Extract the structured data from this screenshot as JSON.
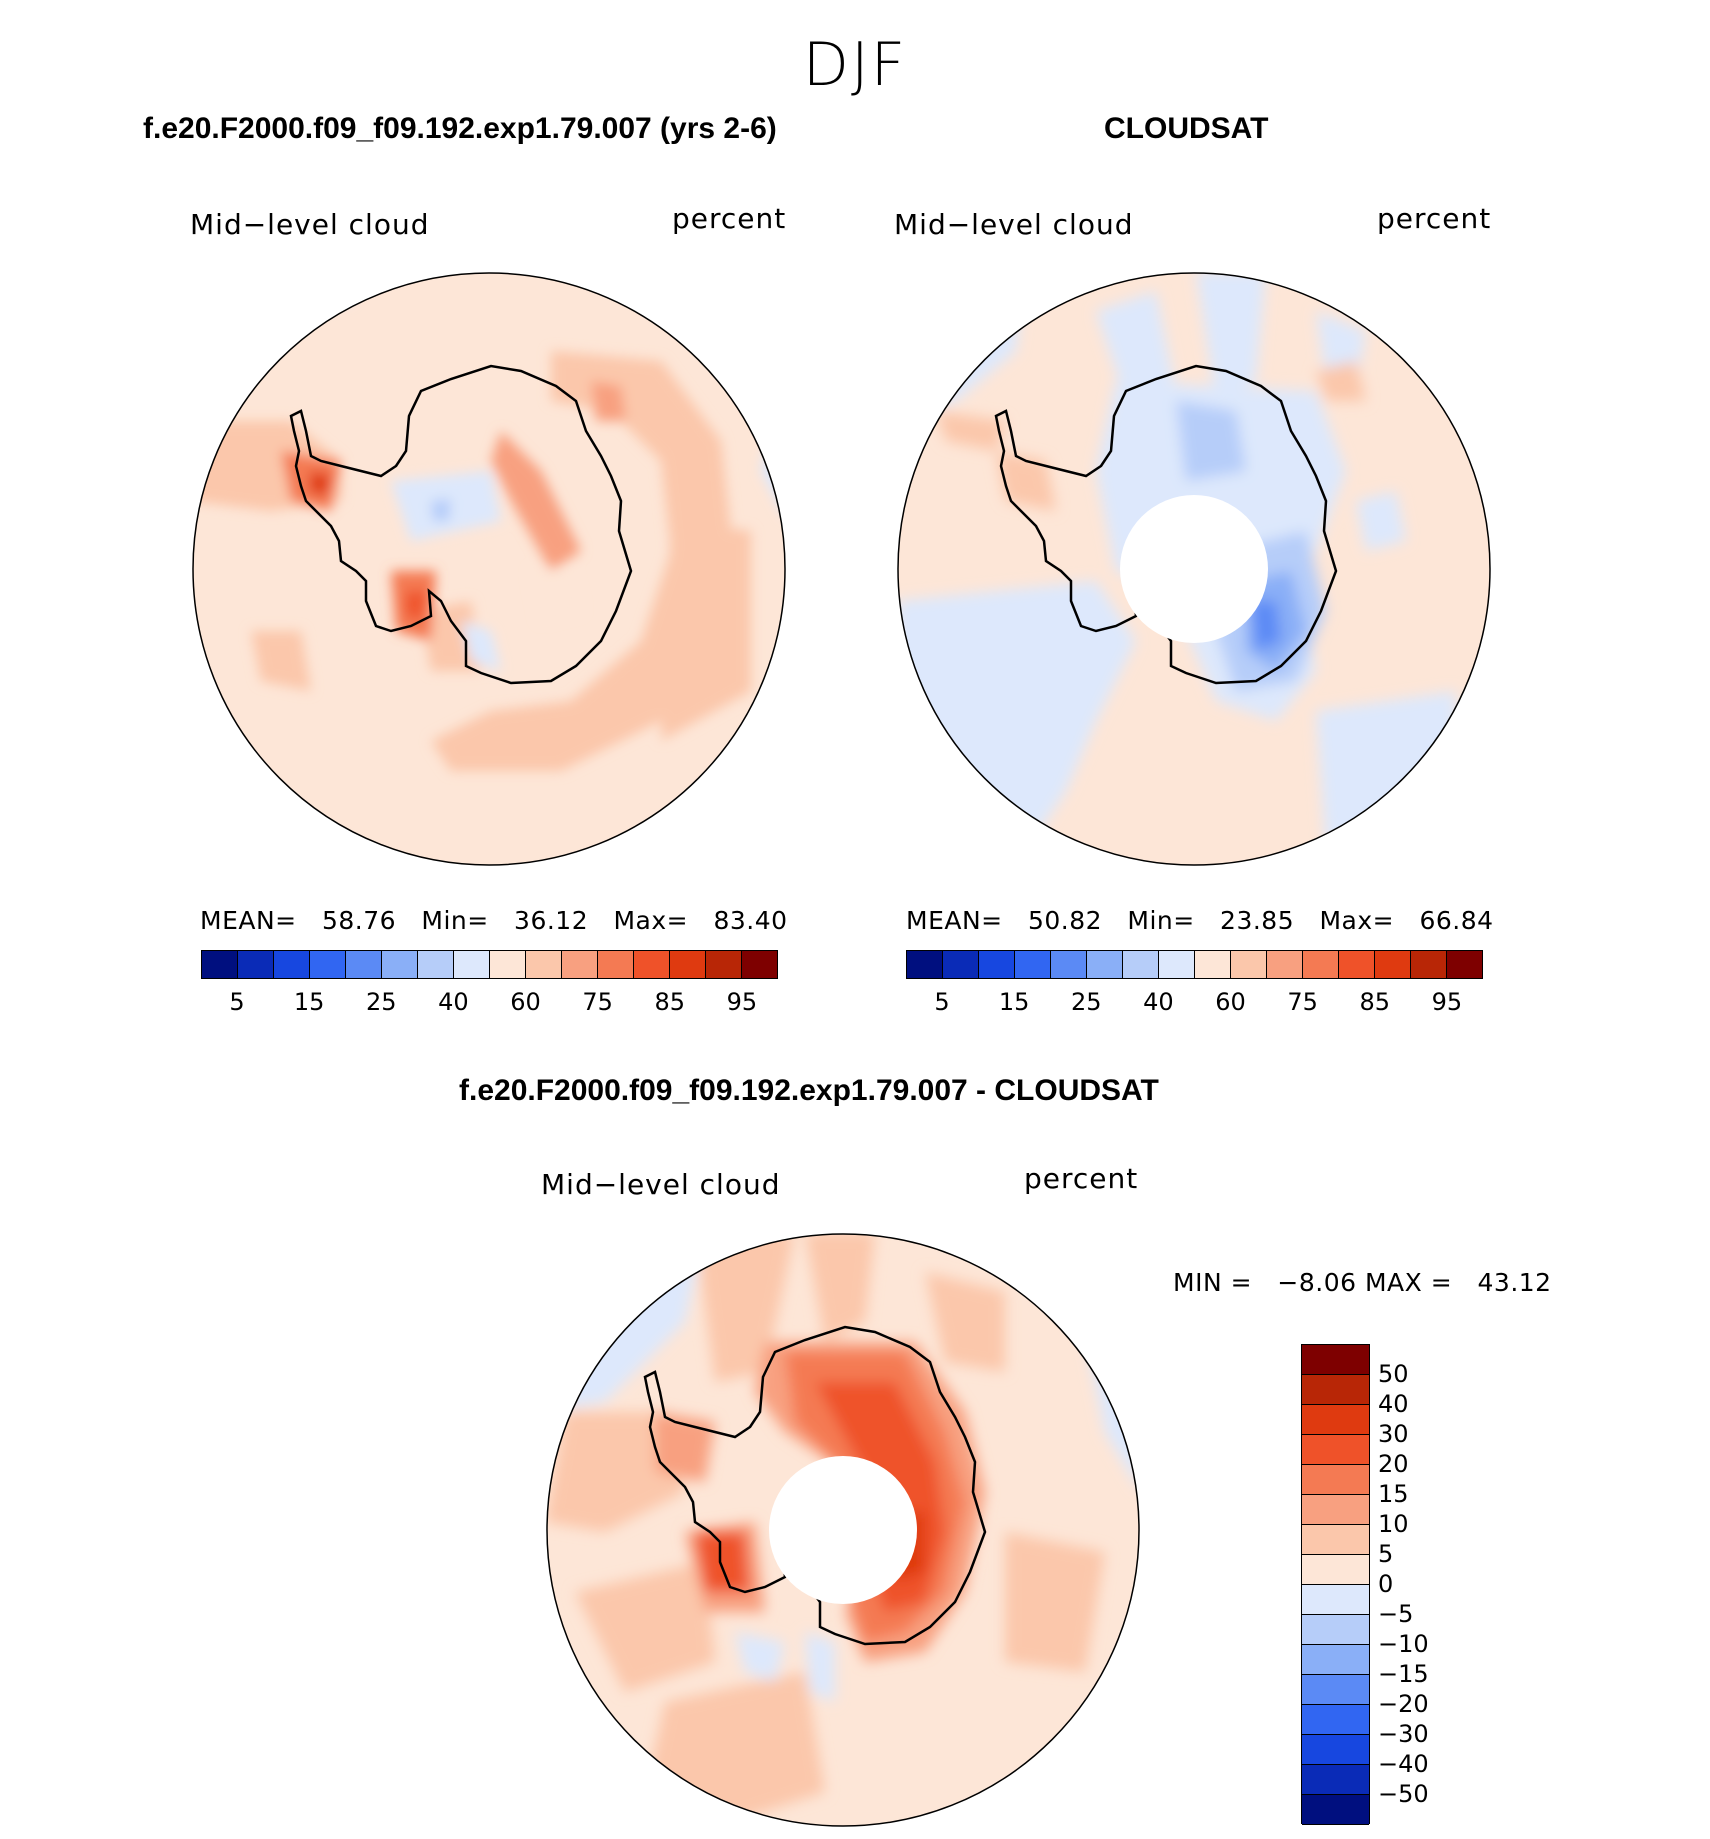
{
  "season": "DJF",
  "panels": [
    {
      "title": "f.e20.F2000.f09_f09.192.exp1.79.007 (yrs 2-6)",
      "left_label": "Mid−level cloud",
      "right_label": "percent",
      "stats": {
        "mean_label": "MEAN=",
        "mean": "58.76",
        "min_label": "Min=",
        "min": "36.12",
        "max_label": "Max=",
        "max": "83.40"
      }
    },
    {
      "title": "CLOUDSAT",
      "left_label": "Mid−level cloud",
      "right_label": "percent",
      "stats": {
        "mean_label": "MEAN=",
        "mean": "50.82",
        "min_label": "Min=",
        "min": "23.85",
        "max_label": "Max=",
        "max": "66.84"
      }
    },
    {
      "title": "f.e20.F2000.f09_f09.192.exp1.79.007 - CLOUDSAT",
      "left_label": "Mid−level cloud",
      "right_label": "percent",
      "stats": {
        "min_label": "MIN =",
        "min": "−8.06",
        "max_label": "MAX =",
        "max": "43.12"
      }
    }
  ],
  "abs_colorbar": {
    "colors": [
      "#000f7f",
      "#0a2bb7",
      "#1747e0",
      "#3166f2",
      "#5b8af5",
      "#8aaff7",
      "#b6cdf9",
      "#dde8fc",
      "#fde6d7",
      "#fbc7ab",
      "#f8a080",
      "#f47a53",
      "#ef5229",
      "#df3a10",
      "#b82606",
      "#7e0000"
    ],
    "ticks": [
      "5",
      "15",
      "25",
      "40",
      "60",
      "75",
      "85",
      "95"
    ]
  },
  "diff_colorbar": {
    "colors": [
      "#7e0000",
      "#b82606",
      "#df3a10",
      "#ef5229",
      "#f47a53",
      "#f8a080",
      "#fbc7ab",
      "#fde6d7",
      "#dde8fc",
      "#b6cdf9",
      "#8aaff7",
      "#5b8af5",
      "#3166f2",
      "#1747e0",
      "#0a2bb7",
      "#000f7f"
    ],
    "labels": [
      "50",
      "40",
      "30",
      "20",
      "15",
      "10",
      "5",
      "0",
      "−5",
      "−10",
      "−15",
      "−20",
      "−30",
      "−40",
      "−50"
    ]
  }
}
